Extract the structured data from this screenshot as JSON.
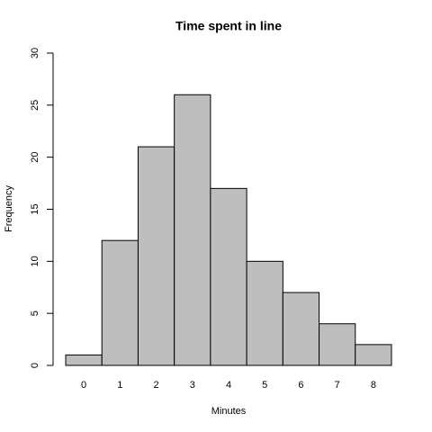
{
  "chart_data": {
    "type": "histogram",
    "title": "Time spent in line",
    "x_label": "Minutes",
    "y_label": "Frequency",
    "bins": [
      -0.5,
      0.5,
      1.5,
      2.5,
      3.5,
      4.5,
      5.5,
      6.5,
      7.5,
      8.5
    ],
    "values": [
      1,
      12,
      21,
      26,
      17,
      10,
      7,
      4,
      2
    ],
    "color": "#bebebe",
    "xlim": [
      -0.5,
      8.5
    ],
    "xticks": [
      0,
      1,
      2,
      3,
      4,
      5,
      6,
      7,
      8
    ],
    "ylim": [
      0,
      30
    ],
    "yticks": [
      0,
      5,
      10,
      15,
      20,
      25,
      30
    ]
  }
}
